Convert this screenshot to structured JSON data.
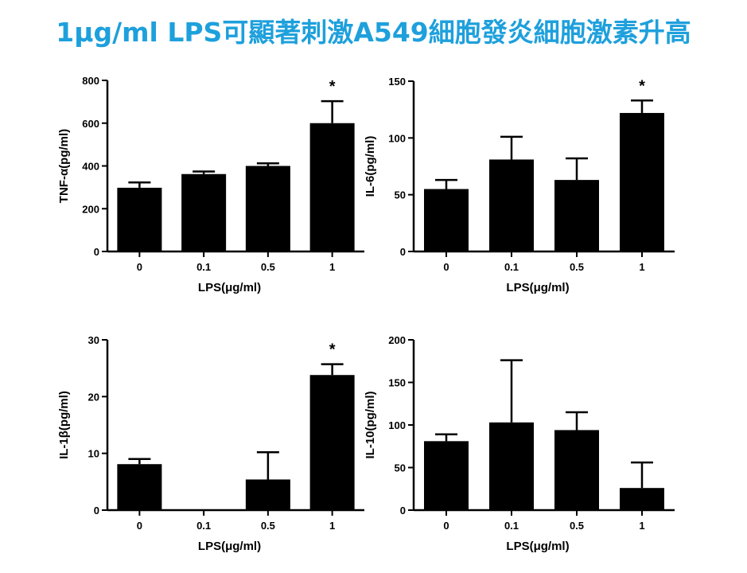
{
  "page": {
    "title": "1μg/ml LPS可顯著刺激A549細胞發炎細胞激素升高"
  },
  "chart_data": [
    {
      "type": "bar",
      "title": "",
      "categories": [
        "0",
        "0.1",
        "0.5",
        "1"
      ],
      "values": [
        298,
        362,
        400,
        600
      ],
      "errors": [
        25,
        12,
        12,
        103
      ],
      "significance": [
        "",
        "",
        "",
        "*"
      ],
      "xlabel": "LPS(μg/ml)",
      "ylabel": "TNF-α(pg/ml)",
      "ylim": [
        0,
        800
      ],
      "yticks": [
        "0",
        "200",
        "400",
        "600",
        "800"
      ],
      "grid": false
    },
    {
      "type": "bar",
      "title": "",
      "categories": [
        "0",
        "0.1",
        "0.5",
        "1"
      ],
      "values": [
        55,
        81,
        63,
        122
      ],
      "errors": [
        8,
        20,
        19,
        11
      ],
      "significance": [
        "",
        "",
        "",
        "*"
      ],
      "xlabel": "LPS(μg/ml)",
      "ylabel": "IL-6(pg/ml)",
      "ylim": [
        0,
        150
      ],
      "yticks": [
        "0",
        "50",
        "100",
        "150"
      ],
      "grid": false
    },
    {
      "type": "bar",
      "title": "",
      "categories": [
        "0",
        "0.1",
        "0.5",
        "1"
      ],
      "values": [
        8.1,
        0,
        5.4,
        23.8
      ],
      "errors": [
        0.9,
        0,
        4.8,
        1.9
      ],
      "significance": [
        "",
        "",
        "",
        "*"
      ],
      "xlabel": "LPS(μg/ml)",
      "ylabel": "IL-1β(pg/ml)",
      "ylim": [
        0,
        30
      ],
      "yticks": [
        "0",
        "10",
        "20",
        "30"
      ],
      "grid": false
    },
    {
      "type": "bar",
      "title": "",
      "categories": [
        "0",
        "0.1",
        "0.5",
        "1"
      ],
      "values": [
        81,
        103,
        94,
        26
      ],
      "errors": [
        8,
        73,
        21,
        30
      ],
      "significance": [
        "",
        "",
        "",
        ""
      ],
      "xlabel": "LPS(μg/ml)",
      "ylabel": "IL-10(pg/ml)",
      "ylim": [
        0,
        200
      ],
      "yticks": [
        "0",
        "50",
        "100",
        "150",
        "200"
      ],
      "grid": false
    }
  ]
}
